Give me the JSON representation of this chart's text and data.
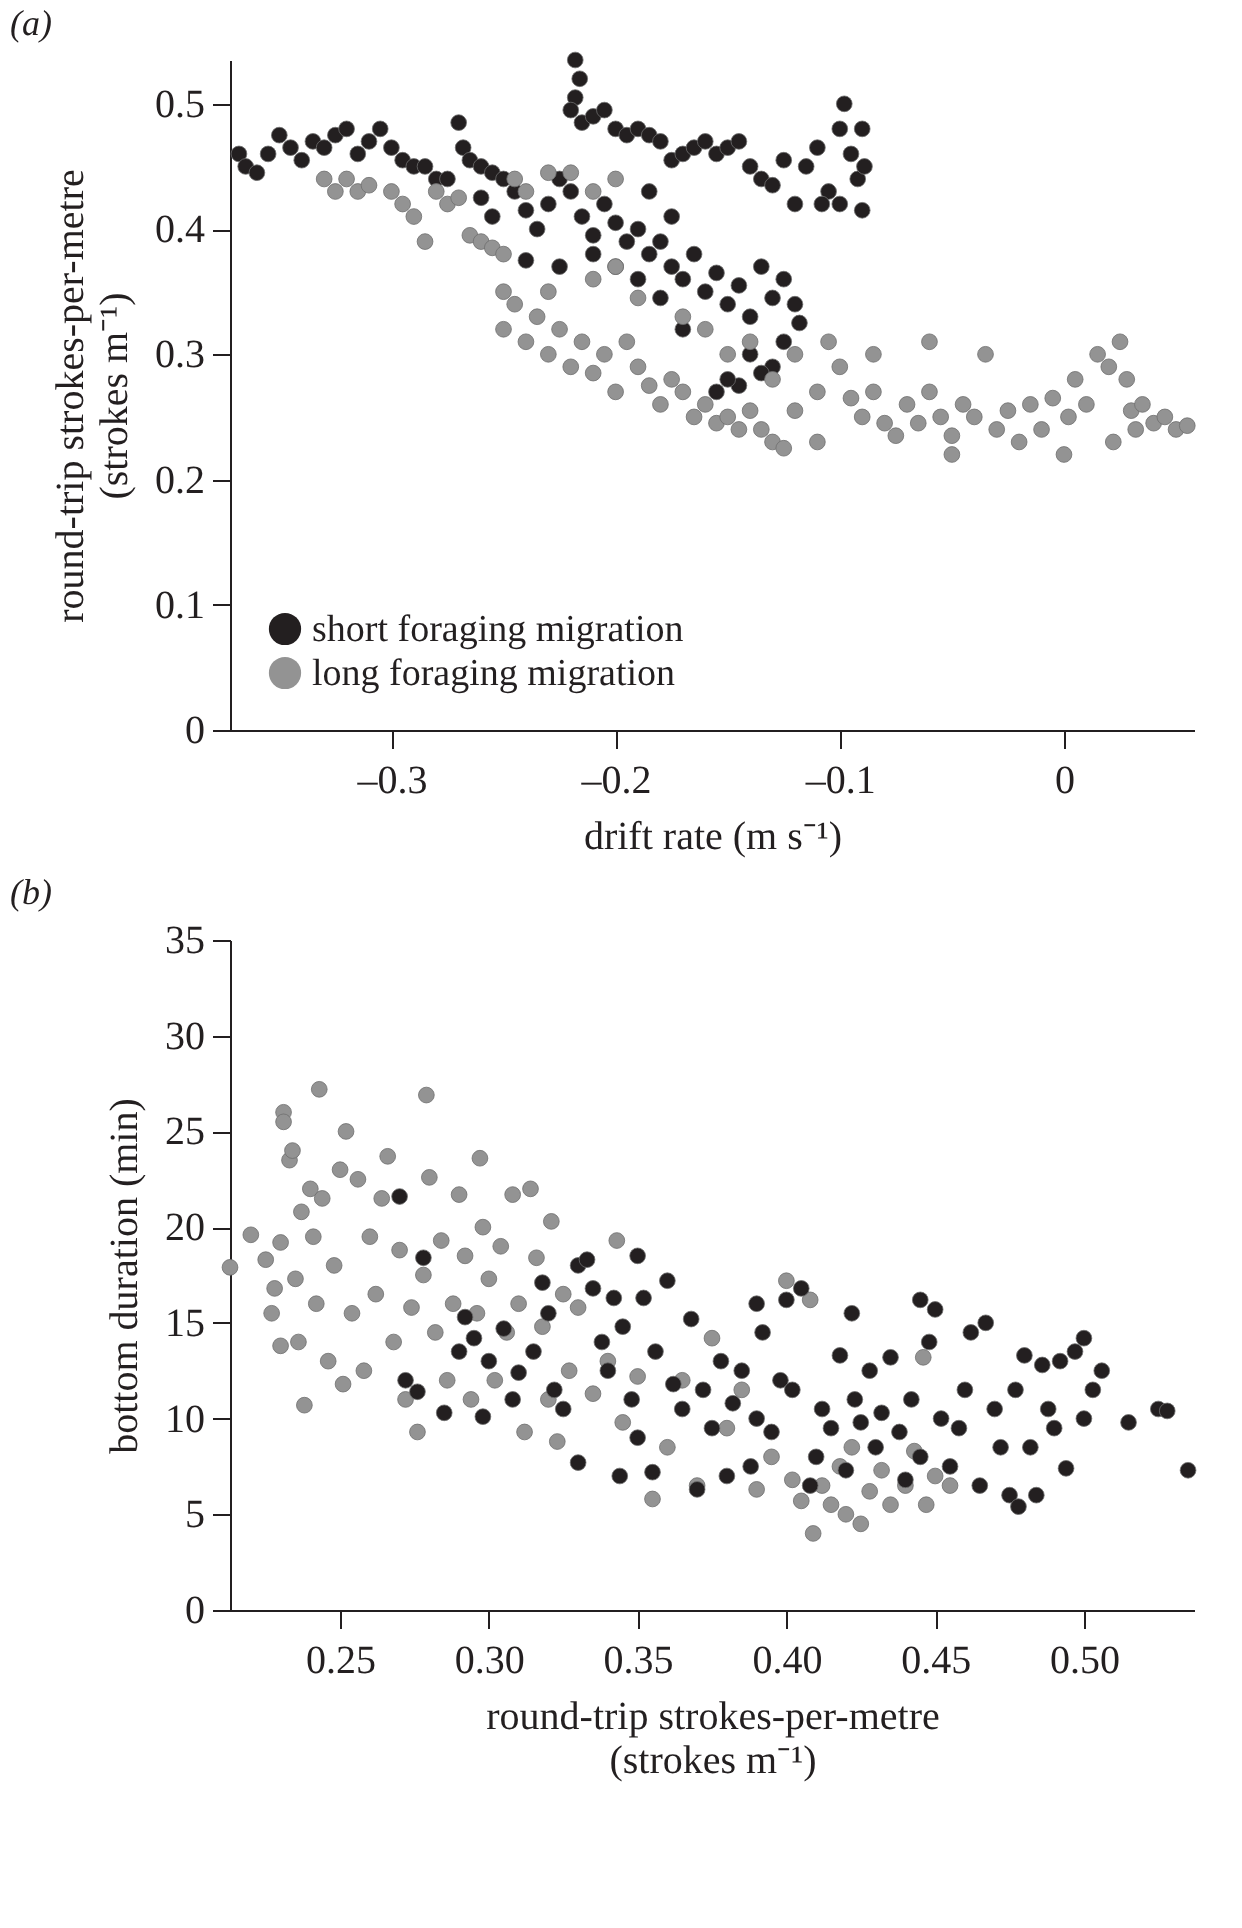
{
  "chart_data": [
    {
      "type": "scatter",
      "title": "(a)",
      "xlabel": "drift rate (m s⁻¹)",
      "ylabel": "round-trip strokes-per-metre\n(strokes m⁻¹)",
      "xlim": [
        -0.372,
        0.058
      ],
      "ylim": [
        0,
        0.535
      ],
      "xticks": [
        {
          "value": -0.3,
          "label": "–0.3"
        },
        {
          "value": -0.2,
          "label": "–0.2"
        },
        {
          "value": -0.1,
          "label": "–0.1"
        },
        {
          "value": 0,
          "label": "0"
        }
      ],
      "yticks": [
        {
          "value": 0,
          "label": "0"
        },
        0.1,
        0.2,
        0.3,
        0.4,
        0.5
      ],
      "grid": false,
      "legend": "bottom left",
      "marker": "circle",
      "series": [
        {
          "name": "short foraging migration",
          "color": "#231f20",
          "x": [
            -0.368,
            -0.365,
            -0.36,
            -0.355,
            -0.35,
            -0.345,
            -0.34,
            -0.335,
            -0.33,
            -0.325,
            -0.32,
            -0.315,
            -0.31,
            -0.305,
            -0.3,
            -0.295,
            -0.29,
            -0.285,
            -0.28,
            -0.275,
            -0.27,
            -0.268,
            -0.265,
            -0.26,
            -0.255,
            -0.25,
            -0.26,
            -0.255,
            -0.245,
            -0.24,
            -0.235,
            -0.23,
            -0.225,
            -0.22,
            -0.215,
            -0.21,
            -0.205,
            -0.2,
            -0.195,
            -0.19,
            -0.185,
            -0.18,
            -0.175,
            -0.17,
            -0.165,
            -0.16,
            -0.155,
            -0.15,
            -0.145,
            -0.14,
            -0.135,
            -0.13,
            -0.125,
            -0.12,
            -0.118,
            -0.125,
            -0.13,
            -0.135,
            -0.14,
            -0.145,
            -0.15,
            -0.155,
            -0.17,
            -0.18,
            -0.19,
            -0.2,
            -0.21,
            -0.225,
            -0.24,
            -0.175,
            -0.185,
            -0.218,
            -0.216,
            -0.218,
            -0.22,
            -0.215,
            -0.21,
            -0.205,
            -0.2,
            -0.195,
            -0.19,
            -0.185,
            -0.18,
            -0.175,
            -0.17,
            -0.165,
            -0.16,
            -0.155,
            -0.15,
            -0.145,
            -0.14,
            -0.135,
            -0.13,
            -0.125,
            -0.12,
            -0.115,
            -0.11,
            -0.105,
            -0.1,
            -0.098,
            -0.095,
            -0.092,
            -0.09,
            -0.089,
            -0.09,
            -0.1,
            -0.108
          ],
          "values": [
            0.46,
            0.45,
            0.445,
            0.46,
            0.475,
            0.465,
            0.455,
            0.47,
            0.465,
            0.475,
            0.48,
            0.46,
            0.47,
            0.48,
            0.465,
            0.455,
            0.45,
            0.45,
            0.44,
            0.44,
            0.485,
            0.465,
            0.455,
            0.45,
            0.445,
            0.44,
            0.425,
            0.41,
            0.43,
            0.415,
            0.4,
            0.42,
            0.44,
            0.43,
            0.41,
            0.395,
            0.42,
            0.405,
            0.39,
            0.4,
            0.38,
            0.39,
            0.37,
            0.36,
            0.38,
            0.35,
            0.365,
            0.34,
            0.355,
            0.33,
            0.37,
            0.345,
            0.36,
            0.34,
            0.325,
            0.31,
            0.29,
            0.285,
            0.3,
            0.275,
            0.28,
            0.27,
            0.32,
            0.345,
            0.36,
            0.37,
            0.38,
            0.37,
            0.375,
            0.41,
            0.43,
            0.535,
            0.52,
            0.505,
            0.495,
            0.485,
            0.49,
            0.495,
            0.48,
            0.475,
            0.48,
            0.475,
            0.47,
            0.455,
            0.46,
            0.465,
            0.47,
            0.46,
            0.465,
            0.47,
            0.45,
            0.44,
            0.435,
            0.455,
            0.42,
            0.45,
            0.465,
            0.43,
            0.48,
            0.5,
            0.46,
            0.44,
            0.48,
            0.45,
            0.415,
            0.42,
            0.42
          ]
        },
        {
          "name": "long foraging migration",
          "color": "#939393",
          "x": [
            -0.33,
            -0.325,
            -0.32,
            -0.315,
            -0.31,
            -0.3,
            -0.295,
            -0.29,
            -0.285,
            -0.28,
            -0.275,
            -0.27,
            -0.265,
            -0.26,
            -0.255,
            -0.25,
            -0.245,
            -0.24,
            -0.23,
            -0.22,
            -0.21,
            -0.25,
            -0.25,
            -0.245,
            -0.24,
            -0.235,
            -0.23,
            -0.225,
            -0.22,
            -0.215,
            -0.21,
            -0.205,
            -0.2,
            -0.195,
            -0.19,
            -0.185,
            -0.18,
            -0.175,
            -0.17,
            -0.165,
            -0.16,
            -0.155,
            -0.15,
            -0.145,
            -0.14,
            -0.135,
            -0.13,
            -0.125,
            -0.2,
            -0.19,
            -0.17,
            -0.16,
            -0.15,
            -0.14,
            -0.13,
            -0.12,
            -0.11,
            -0.1,
            -0.095,
            -0.09,
            -0.085,
            -0.08,
            -0.075,
            -0.07,
            -0.065,
            -0.06,
            -0.055,
            -0.05,
            -0.045,
            -0.04,
            -0.035,
            -0.03,
            -0.025,
            -0.02,
            -0.015,
            -0.01,
            -0.005,
            0,
            0.002,
            0.005,
            0.01,
            0.015,
            0.02,
            0.022,
            0.025,
            0.028,
            0.03,
            0.032,
            0.035,
            0.04,
            0.045,
            0.05,
            0.055,
            -0.085,
            -0.06,
            -0.12,
            -0.11,
            -0.05,
            -0.105,
            -0.2,
            -0.23,
            -0.21
          ],
          "values": [
            0.44,
            0.43,
            0.44,
            0.43,
            0.435,
            0.43,
            0.42,
            0.41,
            0.39,
            0.43,
            0.42,
            0.425,
            0.395,
            0.39,
            0.385,
            0.38,
            0.44,
            0.43,
            0.445,
            0.445,
            0.43,
            0.35,
            0.32,
            0.34,
            0.31,
            0.33,
            0.3,
            0.32,
            0.29,
            0.31,
            0.285,
            0.3,
            0.27,
            0.31,
            0.29,
            0.275,
            0.26,
            0.28,
            0.27,
            0.25,
            0.26,
            0.245,
            0.25,
            0.24,
            0.255,
            0.24,
            0.23,
            0.225,
            0.37,
            0.345,
            0.33,
            0.32,
            0.3,
            0.31,
            0.28,
            0.3,
            0.27,
            0.29,
            0.265,
            0.25,
            0.27,
            0.245,
            0.235,
            0.26,
            0.245,
            0.27,
            0.25,
            0.235,
            0.26,
            0.25,
            0.3,
            0.24,
            0.255,
            0.23,
            0.26,
            0.24,
            0.265,
            0.22,
            0.25,
            0.28,
            0.26,
            0.3,
            0.29,
            0.23,
            0.31,
            0.28,
            0.255,
            0.24,
            0.26,
            0.245,
            0.25,
            0.24,
            0.243,
            0.3,
            0.31,
            0.255,
            0.23,
            0.22,
            0.31,
            0.44,
            0.35,
            0.36
          ]
        }
      ]
    },
    {
      "type": "scatter",
      "title": "(b)",
      "xlabel": "round-trip strokes-per-metre\n(strokes m⁻¹)",
      "ylabel": "bottom duration (min)",
      "xlim": [
        0.213,
        0.537
      ],
      "ylim": [
        0,
        35
      ],
      "xticks": [
        0.25,
        {
          "value": 0.3,
          "label": "0.30"
        },
        0.35,
        {
          "value": 0.4,
          "label": "0.40"
        },
        0.45,
        {
          "value": 0.5,
          "label": "0.50"
        }
      ],
      "yticks": [
        0,
        5,
        10,
        15,
        20,
        25,
        30,
        35
      ],
      "grid": false,
      "marker": "circle",
      "series": [
        {
          "color": "#939393",
          "x": [
            0.213,
            0.22,
            0.225,
            0.227,
            0.228,
            0.23,
            0.23,
            0.231,
            0.231,
            0.233,
            0.234,
            0.235,
            0.236,
            0.237,
            0.238,
            0.24,
            0.241,
            0.242,
            0.243,
            0.244,
            0.246,
            0.248,
            0.25,
            0.251,
            0.252,
            0.254,
            0.256,
            0.258,
            0.26,
            0.262,
            0.264,
            0.266,
            0.268,
            0.27,
            0.272,
            0.274,
            0.276,
            0.278,
            0.279,
            0.28,
            0.282,
            0.284,
            0.286,
            0.288,
            0.29,
            0.292,
            0.294,
            0.296,
            0.297,
            0.298,
            0.3,
            0.302,
            0.304,
            0.306,
            0.308,
            0.31,
            0.312,
            0.314,
            0.316,
            0.318,
            0.32,
            0.321,
            0.323,
            0.325,
            0.327,
            0.33,
            0.335,
            0.34,
            0.343,
            0.345,
            0.35,
            0.355,
            0.36,
            0.365,
            0.37,
            0.375,
            0.38,
            0.385,
            0.39,
            0.395,
            0.4,
            0.402,
            0.405,
            0.408,
            0.409,
            0.412,
            0.415,
            0.418,
            0.42,
            0.422,
            0.425,
            0.428,
            0.432,
            0.435,
            0.44,
            0.443,
            0.446,
            0.447,
            0.45,
            0.455
          ],
          "values": [
            17.9,
            19.6,
            18.3,
            15.5,
            16.8,
            13.8,
            19.2,
            26,
            25.5,
            23.5,
            24,
            17.3,
            14,
            20.8,
            10.7,
            22,
            19.5,
            16,
            27.2,
            21.5,
            13,
            18,
            23,
            11.8,
            25,
            15.5,
            22.5,
            12.5,
            19.5,
            16.5,
            21.5,
            23.7,
            14,
            18.8,
            11,
            15.8,
            9.3,
            17.5,
            26.9,
            22.6,
            14.5,
            19.3,
            12,
            16,
            21.7,
            18.5,
            11,
            15.5,
            23.6,
            20,
            17.3,
            12,
            19,
            14.5,
            21.7,
            16,
            9.3,
            22,
            18.4,
            14.8,
            11,
            20.3,
            8.8,
            16.5,
            12.5,
            15.8,
            11.3,
            13,
            19.3,
            9.8,
            12.2,
            5.8,
            8.5,
            12,
            6.5,
            14.2,
            9.5,
            11.5,
            6.3,
            8,
            17.2,
            6.8,
            5.7,
            16.2,
            4,
            6.5,
            5.5,
            7.5,
            5,
            8.5,
            4.5,
            6.2,
            7.3,
            5.5,
            6.5,
            8.3,
            13.2,
            5.5,
            7,
            6.5
          ]
        },
        {
          "color": "#231f20",
          "x": [
            0.27,
            0.278,
            0.272,
            0.276,
            0.285,
            0.29,
            0.292,
            0.295,
            0.298,
            0.3,
            0.305,
            0.308,
            0.31,
            0.315,
            0.318,
            0.32,
            0.322,
            0.325,
            0.33,
            0.33,
            0.333,
            0.335,
            0.338,
            0.34,
            0.342,
            0.344,
            0.345,
            0.348,
            0.35,
            0.35,
            0.352,
            0.355,
            0.356,
            0.36,
            0.362,
            0.365,
            0.368,
            0.37,
            0.372,
            0.375,
            0.378,
            0.38,
            0.382,
            0.385,
            0.388,
            0.39,
            0.39,
            0.392,
            0.395,
            0.398,
            0.4,
            0.402,
            0.405,
            0.408,
            0.41,
            0.412,
            0.415,
            0.418,
            0.42,
            0.422,
            0.423,
            0.425,
            0.428,
            0.43,
            0.432,
            0.435,
            0.438,
            0.44,
            0.442,
            0.445,
            0.445,
            0.448,
            0.45,
            0.452,
            0.455,
            0.458,
            0.46,
            0.462,
            0.465,
            0.467,
            0.47,
            0.472,
            0.475,
            0.477,
            0.48,
            0.478,
            0.482,
            0.484,
            0.486,
            0.488,
            0.49,
            0.492,
            0.494,
            0.497,
            0.5,
            0.5,
            0.503,
            0.506,
            0.515,
            0.525,
            0.528,
            0.535
          ],
          "values": [
            21.6,
            18.4,
            12,
            11.4,
            10.3,
            13.5,
            15.3,
            14.2,
            10.1,
            13,
            14.7,
            11,
            12.4,
            13.5,
            17.1,
            15.5,
            11.5,
            10.5,
            18,
            7.7,
            18.3,
            16.8,
            14,
            12.5,
            16.3,
            7,
            14.8,
            11,
            18.5,
            9,
            16.3,
            7.2,
            13.5,
            17.2,
            11.8,
            10.5,
            15.2,
            6.3,
            11.5,
            9.5,
            13,
            7,
            10.8,
            12.5,
            7.5,
            16,
            10,
            14.5,
            9.3,
            12,
            16.2,
            11.5,
            16.8,
            6.5,
            8,
            10.5,
            9.5,
            13.3,
            7.3,
            15.5,
            11,
            9.8,
            12.5,
            8.5,
            10.3,
            13.2,
            9.3,
            6.8,
            11,
            16.2,
            8,
            14,
            15.7,
            10,
            7.5,
            9.5,
            11.5,
            14.5,
            6.5,
            15,
            10.5,
            8.5,
            6,
            11.5,
            13.3,
            5.4,
            8.5,
            6,
            12.8,
            10.5,
            9.5,
            13,
            7.4,
            13.5,
            10,
            14.2,
            11.5,
            12.5,
            9.8,
            10.5,
            10.4,
            7.3
          ]
        }
      ]
    }
  ]
}
